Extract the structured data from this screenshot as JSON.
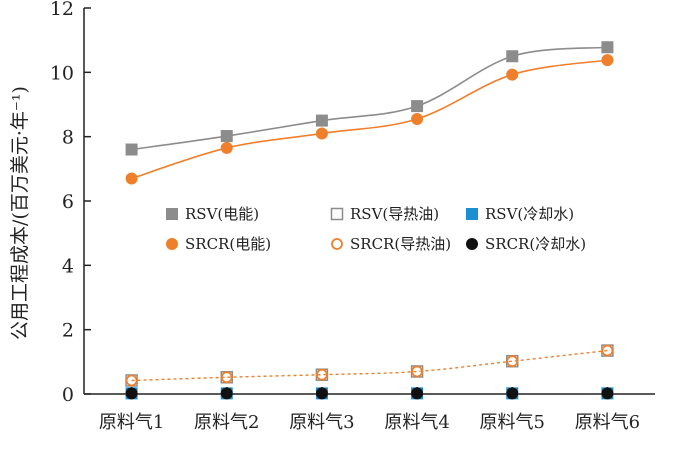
{
  "chart_data": {
    "type": "line",
    "title": "",
    "xlabel": "",
    "ylabel": "公用工程成本/(百万美元·年⁻¹)",
    "ylim": [
      0,
      12
    ],
    "yticks": [
      0,
      2,
      4,
      6,
      8,
      10,
      12
    ],
    "categories": [
      "原料气1",
      "原料气2",
      "原料气3",
      "原料气4",
      "原料气5",
      "原料气6"
    ],
    "grid": false,
    "legend_position": "center",
    "series": [
      {
        "name": "RSV(电能)",
        "values": [
          7.6,
          8.02,
          8.5,
          8.95,
          10.5,
          10.78
        ],
        "color": "#8c8c8c",
        "marker": "square-filled",
        "line": "solid"
      },
      {
        "name": "RSV(导热油)",
        "values": [
          0.42,
          0.52,
          0.6,
          0.7,
          1.02,
          1.35
        ],
        "color": "#8c8c8c",
        "marker": "square-open",
        "line": "none"
      },
      {
        "name": "RSV(冷却水)",
        "values": [
          0.02,
          0.02,
          0.02,
          0.02,
          0.02,
          0.02
        ],
        "color": "#1a8fd1",
        "marker": "square-filled",
        "line": "none"
      },
      {
        "name": "SRCR(电能)",
        "values": [
          6.7,
          7.65,
          8.1,
          8.55,
          9.93,
          10.38
        ],
        "color": "#f07f2c",
        "marker": "circle-filled",
        "line": "solid"
      },
      {
        "name": "SRCR(导热油)",
        "values": [
          0.42,
          0.52,
          0.6,
          0.7,
          1.02,
          1.35
        ],
        "color": "#f07f2c",
        "marker": "circle-open",
        "line": "dashed"
      },
      {
        "name": "SRCR(冷却水)",
        "values": [
          0.02,
          0.02,
          0.02,
          0.02,
          0.02,
          0.02
        ],
        "color": "#111111",
        "marker": "circle-filled",
        "line": "none"
      }
    ]
  }
}
